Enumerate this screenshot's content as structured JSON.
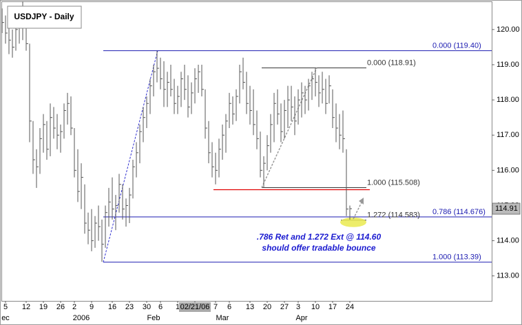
{
  "chart_data": {
    "type": "ohlc",
    "title": "USDJPY - Daily",
    "categories": [
      null,
      "5",
      null,
      null,
      null,
      null,
      null,
      "12",
      null,
      null,
      null,
      null,
      "19",
      null,
      null,
      null,
      null,
      "26",
      null,
      null,
      null,
      "2",
      null,
      null,
      null,
      null,
      "9",
      null,
      null,
      null,
      null,
      null,
      "16",
      null,
      null,
      null,
      null,
      "23",
      null,
      null,
      null,
      null,
      "30",
      null,
      null,
      null,
      "6",
      null,
      null,
      null,
      null,
      "1",
      null,
      null,
      null,
      null,
      "02/21/06",
      null,
      null,
      null,
      null,
      null,
      "7",
      null,
      null,
      null,
      "6",
      null,
      null,
      null,
      null,
      null,
      "13",
      null,
      null,
      null,
      null,
      "20",
      null,
      null,
      null,
      null,
      "27",
      null,
      null,
      null,
      "3",
      null,
      null,
      null,
      null,
      "10",
      null,
      null,
      null,
      null,
      "17",
      null,
      null,
      null,
      null,
      "24"
    ],
    "periods": [
      null,
      "ec",
      null,
      null,
      null,
      null,
      null,
      null,
      null,
      null,
      null,
      null,
      null,
      null,
      null,
      null,
      null,
      null,
      null,
      null,
      null,
      null,
      null,
      "2006",
      null,
      null,
      null,
      null,
      null,
      null,
      null,
      null,
      null,
      null,
      null,
      null,
      null,
      null,
      null,
      null,
      null,
      null,
      null,
      null,
      "Feb",
      null,
      null,
      null,
      null,
      null,
      null,
      null,
      null,
      null,
      null,
      null,
      null,
      null,
      null,
      null,
      null,
      null,
      null,
      null,
      "Mar",
      null,
      null,
      null,
      null,
      null,
      null,
      null,
      null,
      null,
      null,
      null,
      null,
      null,
      null,
      null,
      null,
      null,
      null,
      null,
      null,
      null,
      null,
      "Apr",
      null,
      null,
      null,
      null,
      null,
      null,
      null,
      null,
      null,
      null,
      null,
      null,
      null,
      null
    ],
    "high": [
      120.6,
      120.4,
      120.2,
      120.0,
      120.3,
      120.5,
      120.8,
      120.6,
      119.6,
      117.4,
      116.6,
      117.2,
      117.6,
      117.4,
      117.9,
      117.8,
      117.6,
      117.3,
      117.9,
      118.2,
      118.1,
      117.2,
      116.6,
      116.2,
      115.6,
      114.8,
      114.9,
      114.7,
      115.0,
      114.6,
      115.0,
      115.5,
      115.8,
      115.3,
      115.9,
      115.6,
      115.2,
      115.5,
      116.3,
      116.8,
      117.3,
      117.8,
      118.1,
      118.6,
      119.0,
      119.4,
      119.2,
      119.1,
      118.8,
      119.0,
      118.6,
      118.4,
      118.8,
      119.0,
      118.7,
      118.5,
      118.9,
      119.0,
      119.0,
      118.3,
      117.4,
      116.8,
      116.5,
      116.9,
      117.3,
      117.6,
      118.2,
      118.1,
      118.3,
      119.0,
      119.2,
      118.8,
      118.4,
      118.3,
      117.7,
      117.1,
      116.4,
      117.0,
      117.6,
      118.2,
      118.3,
      117.9,
      118.0,
      118.4,
      118.4,
      118.1,
      118.3,
      118.5,
      118.4,
      118.6,
      118.8,
      118.91,
      118.7,
      118.8,
      118.6,
      118.7,
      118.3,
      117.9,
      117.6,
      117.7,
      116.6,
      115.0
    ],
    "low": [
      119.9,
      119.6,
      119.3,
      119.2,
      119.4,
      119.6,
      119.7,
      119.4,
      116.8,
      115.9,
      115.5,
      115.9,
      116.5,
      116.3,
      116.4,
      116.9,
      116.6,
      116.5,
      116.9,
      117.3,
      117.0,
      115.8,
      115.1,
      114.9,
      114.2,
      113.9,
      113.7,
      113.8,
      114.0,
      113.4,
      113.8,
      114.4,
      114.6,
      114.3,
      114.8,
      114.6,
      114.4,
      114.5,
      115.2,
      115.8,
      116.2,
      116.8,
      117.2,
      117.6,
      118.1,
      118.5,
      118.3,
      117.8,
      117.8,
      118.1,
      117.6,
      117.6,
      117.8,
      118.0,
      117.5,
      117.6,
      117.9,
      118.2,
      118.1,
      116.9,
      116.2,
      115.8,
      115.6,
      115.8,
      116.3,
      116.5,
      117.2,
      117.3,
      117.4,
      117.9,
      118.3,
      117.6,
      117.3,
      117.0,
      116.6,
      115.8,
      115.5,
      116.0,
      116.5,
      116.8,
      117.3,
      116.8,
      116.9,
      117.2,
      117.4,
      117.0,
      117.3,
      117.5,
      117.6,
      117.7,
      118.0,
      118.1,
      117.8,
      117.9,
      117.6,
      117.9,
      117.2,
      116.8,
      116.6,
      116.5,
      114.7,
      114.6
    ],
    "close": [
      120.2,
      119.9,
      119.7,
      119.5,
      120.0,
      120.1,
      120.2,
      119.6,
      117.4,
      116.3,
      116.1,
      116.9,
      117.3,
      116.6,
      117.5,
      117.2,
      117.0,
      117.1,
      117.7,
      117.9,
      117.2,
      116.0,
      115.4,
      115.8,
      114.5,
      114.3,
      114.0,
      114.5,
      114.4,
      113.9,
      114.8,
      115.1,
      114.9,
      115.0,
      115.6,
      114.9,
      115.0,
      115.3,
      116.1,
      116.5,
      117.1,
      117.5,
      117.9,
      118.4,
      118.8,
      118.9,
      118.6,
      118.3,
      118.5,
      118.3,
      117.9,
      118.1,
      118.6,
      118.3,
      117.8,
      118.2,
      118.6,
      118.8,
      118.3,
      117.2,
      116.5,
      116.1,
      116.0,
      116.6,
      117.0,
      117.4,
      117.9,
      117.6,
      118.1,
      118.8,
      118.5,
      117.9,
      117.7,
      117.3,
      116.9,
      116.0,
      116.2,
      116.7,
      117.3,
      117.9,
      117.6,
      117.1,
      117.7,
      118.0,
      117.8,
      117.4,
      118.0,
      118.2,
      118.0,
      118.4,
      118.6,
      118.5,
      118.2,
      118.3,
      117.9,
      118.4,
      117.5,
      117.2,
      117.0,
      116.9,
      114.9,
      114.91
    ],
    "color": "#555555",
    "ylim": [
      112.29,
      120.8
    ],
    "yticks": [
      {
        "value": 113,
        "label": "113.00"
      },
      {
        "value": 114,
        "label": "114.00"
      },
      {
        "value": 115,
        "label": "115.00"
      },
      {
        "value": 116,
        "label": "116.00"
      },
      {
        "value": 117,
        "label": "117.00"
      },
      {
        "value": 118,
        "label": "118.00"
      },
      {
        "value": 119,
        "label": "119.00"
      },
      {
        "value": 120,
        "label": "120.00"
      }
    ],
    "last_price": 114.91,
    "levels": [
      {
        "label": "0.000 (119.40)",
        "value": 119.4,
        "color": "#1a1ab0"
      },
      {
        "label": "0.786 (114.676)",
        "value": 114.676,
        "color": "#1a1ab0"
      },
      {
        "label": "1.000 (113.39)",
        "value": 113.39,
        "color": "#1a1ab0"
      },
      {
        "label": "0.000 (118.91)",
        "value": 118.91,
        "color": "#333333"
      },
      {
        "label": "1.000 (115.508)",
        "value": 115.508,
        "color": "#333333"
      },
      {
        "label": "1.272 (114.583)",
        "value": 114.583,
        "color": "#333333"
      }
    ],
    "support": {
      "value": 115.45,
      "color": "#e00000"
    },
    "annotation": [
      ".786 Ret and 1.272 Ext @ 114.60",
      "should offer tradable bounce"
    ]
  }
}
